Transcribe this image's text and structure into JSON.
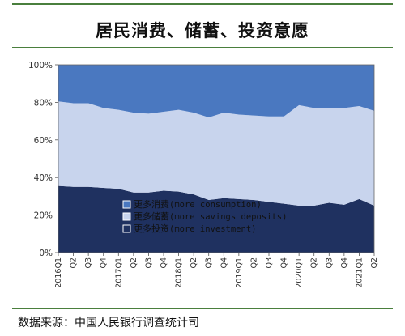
{
  "page": {
    "title": "居民消费、储蓄、投资意愿",
    "source": "数据来源：中国人民银行调查统计司"
  },
  "colors": {
    "consumption": "#4a78c0",
    "savings": "#c8d4ed",
    "investment": "#1f3160",
    "rule": "#4a7f3d"
  },
  "chart_data": {
    "type": "area",
    "stacked": true,
    "ylim": [
      0,
      100
    ],
    "yticks": [
      "0%",
      "20%",
      "40%",
      "60%",
      "80%",
      "100%"
    ],
    "x": [
      "2016Q1",
      "Q2",
      "Q3",
      "Q4",
      "2017Q1",
      "Q2",
      "Q3",
      "Q4",
      "2018Q1",
      "Q2",
      "Q3",
      "Q4",
      "2019Q1",
      "Q2",
      "Q3",
      "Q4",
      "2020Q1",
      "Q2",
      "Q3",
      "Q4",
      "2021Q1",
      "Q2"
    ],
    "series": [
      {
        "name": "更多投资",
        "name_en": "(more investment)",
        "values": [
          35.5,
          35,
          35,
          34.5,
          34,
          32,
          32,
          33,
          32.5,
          31,
          28,
          29,
          28.5,
          28,
          27,
          26,
          25,
          25,
          26.5,
          25.5,
          28.5,
          25
        ]
      },
      {
        "name": "更多储蓄",
        "name_en": "(more savings deposits)",
        "values": [
          45,
          44.5,
          44.5,
          42.5,
          42,
          42.5,
          42,
          42,
          43.5,
          43.5,
          44,
          45.5,
          45,
          45,
          45.5,
          46.5,
          53.5,
          52,
          50.5,
          51.5,
          49.5,
          50.5
        ]
      },
      {
        "name": "更多消费",
        "name_en": "(more consumption)",
        "values": [
          19.5,
          20.5,
          20.5,
          23,
          24,
          25.5,
          26,
          25,
          24,
          25.5,
          28,
          25.5,
          26.5,
          27,
          27.5,
          27.5,
          21.5,
          23,
          23,
          23,
          22,
          24.5
        ]
      }
    ],
    "legend": [
      {
        "series": 2,
        "label": "更多消费",
        "label_en": "(more consumption)"
      },
      {
        "series": 1,
        "label": "更多储蓄",
        "label_en": "(more savings deposits)"
      },
      {
        "series": 0,
        "label": "更多投资",
        "label_en": "(more investment)"
      }
    ]
  }
}
